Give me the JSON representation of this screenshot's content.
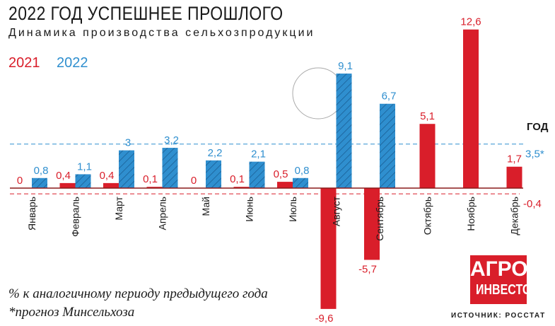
{
  "title": "2022 ГОД УСПЕШНЕЕ ПРОШЛОГО",
  "subtitle": "Динамика производства сельхозпродукции",
  "notes": [
    "% к аналогичному периоду предыдущего года",
    "*прогноз Минсельхоза"
  ],
  "source": "ИСТОЧНИК: РОССТАТ",
  "logo": {
    "line1": "АГРО",
    "line2": "ИНВЕСТОР"
  },
  "colors": {
    "y2021": "#d91e2a",
    "y2022": "#2f8fcf"
  },
  "chart_data": {
    "type": "bar",
    "title": "2022 ГОД УСПЕШНЕЕ ПРОШЛОГО",
    "categories": [
      "Январь",
      "Февраль",
      "Март",
      "Апрель",
      "Май",
      "Июнь",
      "Июль",
      "Август",
      "Сентябрь",
      "Октябрь",
      "Ноябрь",
      "Декабрь"
    ],
    "series": [
      {
        "name": "2021",
        "values": [
          0,
          0.4,
          0.4,
          0.1,
          0,
          0.1,
          0.5,
          -9.6,
          -5.7,
          5.1,
          12.6,
          1.7
        ],
        "labels": [
          "0",
          "0,4",
          "0,4",
          "0,1",
          "0",
          "0,1",
          "0,5",
          "-9,6",
          "-5,7",
          "5,1",
          "12,6",
          "1,7"
        ]
      },
      {
        "name": "2022",
        "values": [
          0.8,
          1.1,
          3,
          3.2,
          2.2,
          2.1,
          0.8,
          9.1,
          6.7,
          null,
          null,
          null
        ],
        "labels": [
          "0,8",
          "1,1",
          "3",
          "3,2",
          "2,2",
          "2,1",
          "0,8",
          "9,1",
          "6,7",
          "",
          "",
          ""
        ]
      }
    ],
    "year_lines": {
      "heading": "ГОД",
      "y2022": {
        "value": 3.5,
        "label": "3,5*"
      },
      "y2021": {
        "value": -0.4,
        "label": "-0,4"
      }
    },
    "ylabel": "% к аналогичному периоду предыдущего года",
    "ylim": [
      -9.6,
      12.6
    ]
  }
}
